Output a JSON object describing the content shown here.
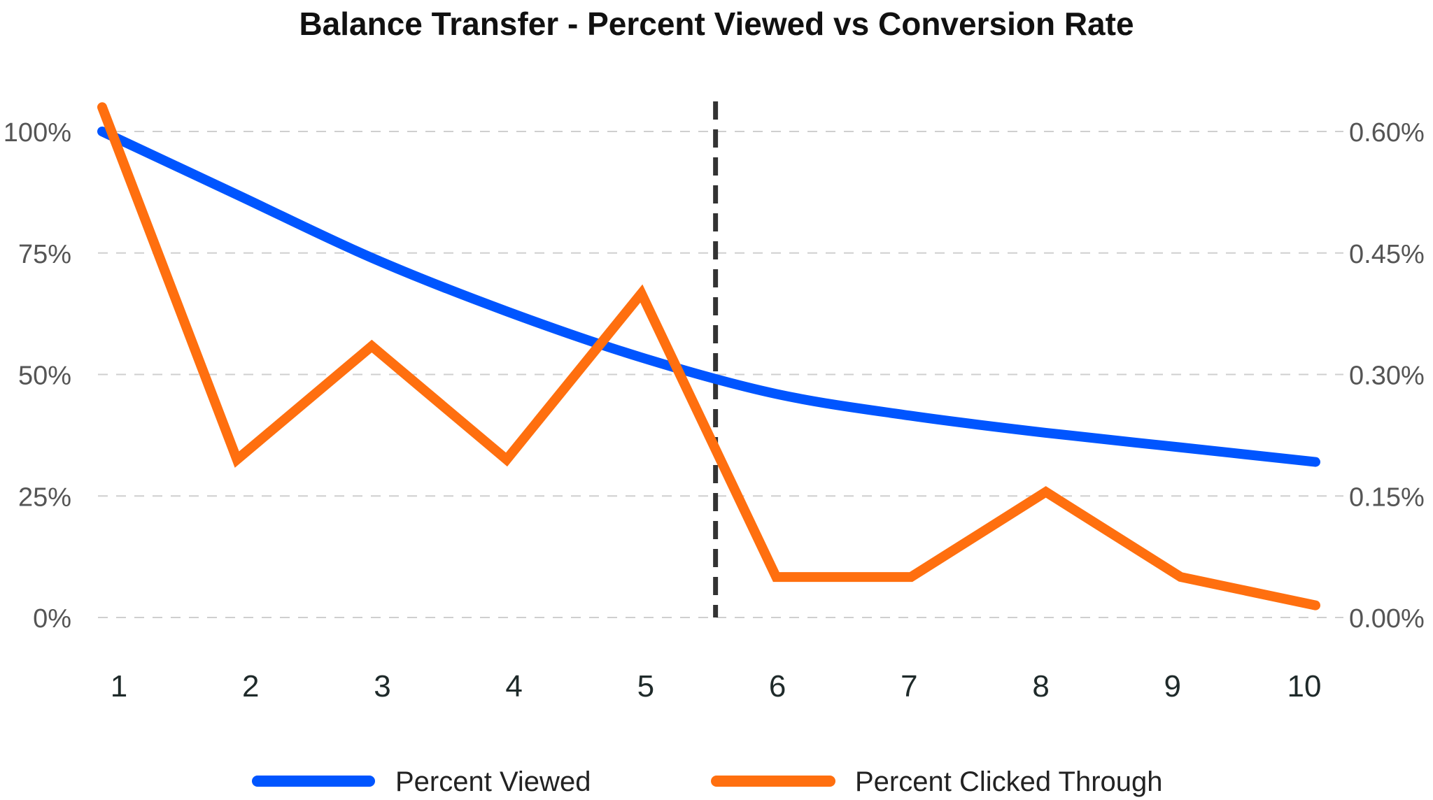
{
  "chart_data": {
    "type": "line",
    "title": "Balance Transfer - Percent Viewed vs Conversion Rate",
    "x": [
      1,
      2,
      3,
      4,
      5,
      6,
      7,
      8,
      9,
      10
    ],
    "x_tick_labels": [
      "1",
      "2",
      "3",
      "4",
      "5",
      "6",
      "7",
      "8",
      "9",
      "10"
    ],
    "y_left": {
      "ylim": [
        0,
        1
      ],
      "ticks": [
        0,
        0.25,
        0.5,
        0.75,
        1.0
      ],
      "tick_labels": [
        "0%",
        "25%",
        "50%",
        "75%",
        "100%"
      ]
    },
    "y_right": {
      "ylim": [
        0,
        0.006
      ],
      "ticks": [
        0,
        0.0015,
        0.003,
        0.0045,
        0.006
      ],
      "tick_labels": [
        "0.00%",
        "0.15%",
        "0.30%",
        "0.45%",
        "0.60%"
      ]
    },
    "series": [
      {
        "name": "Percent Viewed",
        "axis": "left",
        "color": "#0055ff",
        "values": [
          1.0,
          0.87,
          0.74,
          0.63,
          0.535,
          0.46,
          0.415,
          0.38,
          0.35,
          0.32
        ]
      },
      {
        "name": "Percent Clicked Through",
        "axis": "right",
        "color": "#ff6f0f",
        "values": [
          0.0063,
          0.00195,
          0.00335,
          0.00195,
          0.004,
          0.0005,
          0.0005,
          0.00155,
          0.0005,
          0.00015
        ]
      }
    ],
    "reference_line": {
      "x": 5.55,
      "style": "dashed",
      "color": "#333333"
    },
    "grid": true,
    "legend_position": "bottom"
  }
}
